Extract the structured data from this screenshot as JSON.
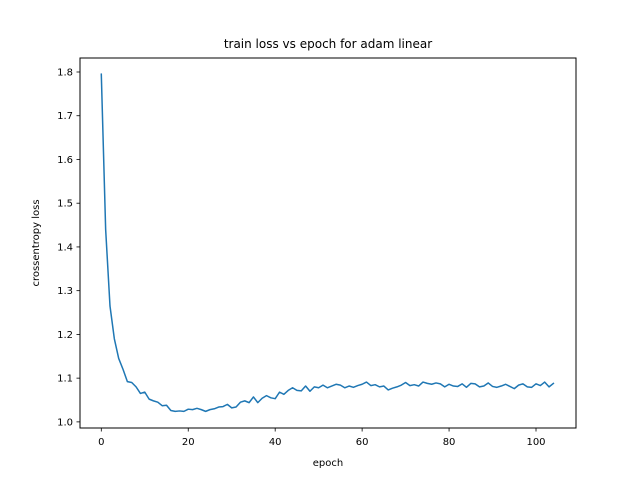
{
  "chart_data": {
    "type": "line",
    "title": "train loss vs epoch for adam linear",
    "xlabel": "epoch",
    "ylabel": "crossentropy loss",
    "xlim": [
      -4.9,
      109.2
    ],
    "ylim": [
      0.986,
      1.832
    ],
    "xticks": [
      0,
      20,
      40,
      60,
      80,
      100
    ],
    "xtick_labels": [
      "0",
      "20",
      "40",
      "60",
      "80",
      "100"
    ],
    "yticks": [
      1.0,
      1.1,
      1.2,
      1.3,
      1.4,
      1.5,
      1.6,
      1.7,
      1.8
    ],
    "ytick_labels": [
      "1.0",
      "1.1",
      "1.2",
      "1.3",
      "1.4",
      "1.5",
      "1.6",
      "1.7",
      "1.8"
    ],
    "grid": false,
    "line_color": "#1f77b4",
    "series": [
      {
        "x": [
          0,
          1,
          2,
          3,
          4,
          5,
          6,
          7,
          8,
          9,
          10,
          11,
          12,
          13,
          14,
          15,
          16,
          17,
          18,
          19,
          20,
          21,
          22,
          23,
          24,
          25,
          26,
          27,
          28,
          29,
          30,
          31,
          32,
          33,
          34,
          35,
          36,
          37,
          38,
          39,
          40,
          41,
          42,
          43,
          44,
          45,
          46,
          47,
          48,
          49,
          50,
          51,
          52,
          53,
          54,
          55,
          56,
          57,
          58,
          59,
          60,
          61,
          62,
          63,
          64,
          65,
          66,
          67,
          68,
          69,
          70,
          71,
          72,
          73,
          74,
          75,
          76,
          77,
          78,
          79,
          80,
          81,
          82,
          83,
          84,
          85,
          86,
          87,
          88,
          89,
          90,
          91,
          92,
          93,
          94,
          95,
          96,
          97,
          98,
          99,
          100,
          101,
          102,
          103,
          104
        ],
        "y": [
          1.795,
          1.44,
          1.265,
          1.19,
          1.145,
          1.12,
          1.092,
          1.09,
          1.08,
          1.065,
          1.068,
          1.052,
          1.048,
          1.045,
          1.037,
          1.038,
          1.026,
          1.024,
          1.025,
          1.024,
          1.029,
          1.028,
          1.031,
          1.028,
          1.024,
          1.028,
          1.03,
          1.034,
          1.035,
          1.04,
          1.032,
          1.034,
          1.045,
          1.048,
          1.044,
          1.057,
          1.044,
          1.054,
          1.06,
          1.055,
          1.053,
          1.068,
          1.063,
          1.072,
          1.078,
          1.072,
          1.071,
          1.082,
          1.07,
          1.08,
          1.078,
          1.084,
          1.078,
          1.082,
          1.086,
          1.084,
          1.078,
          1.082,
          1.079,
          1.083,
          1.086,
          1.091,
          1.083,
          1.085,
          1.08,
          1.082,
          1.073,
          1.077,
          1.08,
          1.084,
          1.09,
          1.083,
          1.085,
          1.082,
          1.091,
          1.088,
          1.086,
          1.089,
          1.087,
          1.08,
          1.086,
          1.082,
          1.081,
          1.087,
          1.079,
          1.088,
          1.087,
          1.08,
          1.082,
          1.089,
          1.081,
          1.079,
          1.082,
          1.086,
          1.081,
          1.076,
          1.084,
          1.087,
          1.08,
          1.079,
          1.087,
          1.083,
          1.091,
          1.08,
          1.088
        ]
      }
    ]
  }
}
